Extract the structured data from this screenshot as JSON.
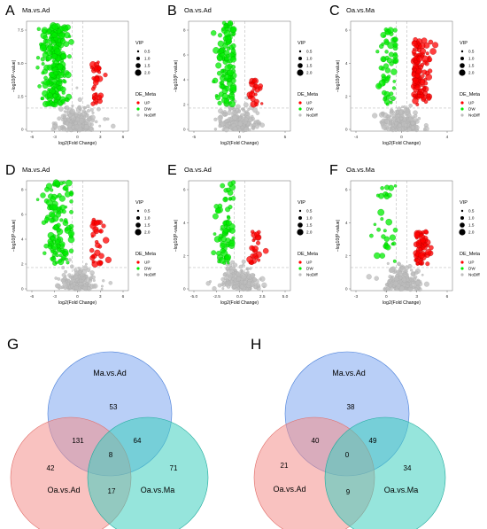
{
  "figure": {
    "volcano_panels": [
      {
        "letter": "A",
        "title": "Ma.vs.Ad",
        "xlabel": "log2(Fold Change)",
        "ylabel": "−log10(P-value)",
        "xticks": [
          "-6",
          "-3",
          "0",
          "3",
          "6"
        ],
        "yticks": [
          "0",
          "2.5",
          "5.0",
          "7.5"
        ]
      },
      {
        "letter": "B",
        "title": "Oa.vs.Ad",
        "xlabel": "log2(Fold Change)",
        "ylabel": "−log10(P-value)",
        "xticks": [
          "-5",
          "0",
          "5"
        ],
        "yticks": [
          "0",
          "2",
          "4",
          "6",
          "8"
        ]
      },
      {
        "letter": "C",
        "title": "Oa.vs.Ma",
        "xlabel": "log2(Fold Change)",
        "ylabel": "−log10(P-value)",
        "xticks": [
          "-4",
          "0",
          "4"
        ],
        "yticks": [
          "0",
          "2",
          "4",
          "6"
        ]
      },
      {
        "letter": "D",
        "title": "Ma.vs.Ad",
        "xlabel": "log2(Fold Change)",
        "ylabel": "−log10(P-value)",
        "xticks": [
          "-6",
          "-3",
          "0",
          "3",
          "6"
        ],
        "yticks": [
          "0",
          "2",
          "4",
          "6",
          "8"
        ]
      },
      {
        "letter": "E",
        "title": "Oa.vs.Ad",
        "xlabel": "log2(Fold Change)",
        "ylabel": "−log10(P-value)",
        "xticks": [
          "-5.0",
          "-2.5",
          "0.0",
          "2.5",
          "5.0"
        ],
        "yticks": [
          "0",
          "2",
          "4",
          "6"
        ]
      },
      {
        "letter": "F",
        "title": "Oa.vs.Ma",
        "xlabel": "log2(Fold Change)",
        "ylabel": "−log10(P-value)",
        "xticks": [
          "-3",
          "0",
          "3",
          "6"
        ],
        "yticks": [
          "0",
          "2",
          "4",
          "6"
        ]
      }
    ],
    "legend": {
      "vip_title": "VIP",
      "vip_sizes": [
        "0.5",
        "1.0",
        "1.5",
        "2.0"
      ],
      "meta_title": "DE_Meta",
      "meta_items": [
        "UP",
        "DW",
        "NoDiff"
      ],
      "colors": {
        "up": "#ff0000",
        "dw": "#00ee00",
        "nodiff": "#bdbdbd"
      }
    },
    "venn_G": {
      "letter": "G",
      "sets": [
        "Ma.vs.Ad",
        "Oa.vs.Ad",
        "Oa.vs.Ma"
      ],
      "counts": {
        "ma_only": "53",
        "oaad_only": "42",
        "oama_only": "71",
        "ma_oaad": "131",
        "ma_oama": "64",
        "oaad_oama": "17",
        "all": "8"
      }
    },
    "venn_H": {
      "letter": "H",
      "sets": [
        "Ma.vs.Ad",
        "Oa.vs.Ad",
        "Oa.vs.Ma"
      ],
      "counts": {
        "ma_only": "38",
        "oaad_only": "21",
        "oama_only": "34",
        "ma_oaad": "40",
        "ma_oama": "49",
        "oaad_oama": "9",
        "all": "0"
      }
    },
    "venn_colors": {
      "ma": "#7fa8f0",
      "oaad": "#f4908c",
      "oama": "#3fcfbf"
    }
  },
  "chart_data": [
    {
      "type": "scatter",
      "title": "Ma.vs.Ad",
      "xlabel": "log2(Fold Change)",
      "ylabel": "-log10(P-value)",
      "xlim": [
        -6.5,
        6.5
      ],
      "ylim": [
        0,
        8.5
      ],
      "legend": [
        "UP",
        "DW",
        "NoDiff"
      ]
    },
    {
      "type": "scatter",
      "title": "Oa.vs.Ad",
      "xlabel": "log2(Fold Change)",
      "ylabel": "-log10(P-value)",
      "xlim": [
        -7,
        7
      ],
      "ylim": [
        0,
        8.5
      ],
      "legend": [
        "UP",
        "DW",
        "NoDiff"
      ]
    },
    {
      "type": "scatter",
      "title": "Oa.vs.Ma",
      "xlabel": "log2(Fold Change)",
      "ylabel": "-log10(P-value)",
      "xlim": [
        -6,
        6
      ],
      "ylim": [
        0,
        6.2
      ],
      "legend": [
        "UP",
        "DW",
        "NoDiff"
      ]
    },
    {
      "type": "scatter",
      "title": "Ma.vs.Ad",
      "xlabel": "log2(Fold Change)",
      "ylabel": "-log10(P-value)",
      "xlim": [
        -6.5,
        6.5
      ],
      "ylim": [
        0,
        8.5
      ],
      "legend": [
        "UP",
        "DW",
        "NoDiff"
      ]
    },
    {
      "type": "scatter",
      "title": "Oa.vs.Ad",
      "xlabel": "log2(Fold Change)",
      "ylabel": "-log10(P-value)",
      "xlim": [
        -5.3,
        5.3
      ],
      "ylim": [
        0,
        6.6
      ],
      "legend": [
        "UP",
        "DW",
        "NoDiff"
      ]
    },
    {
      "type": "scatter",
      "title": "Oa.vs.Ma",
      "xlabel": "log2(Fold Change)",
      "ylabel": "-log10(P-value)",
      "xlim": [
        -4.5,
        6.5
      ],
      "ylim": [
        0,
        6.8
      ],
      "legend": [
        "UP",
        "DW",
        "NoDiff"
      ]
    }
  ]
}
